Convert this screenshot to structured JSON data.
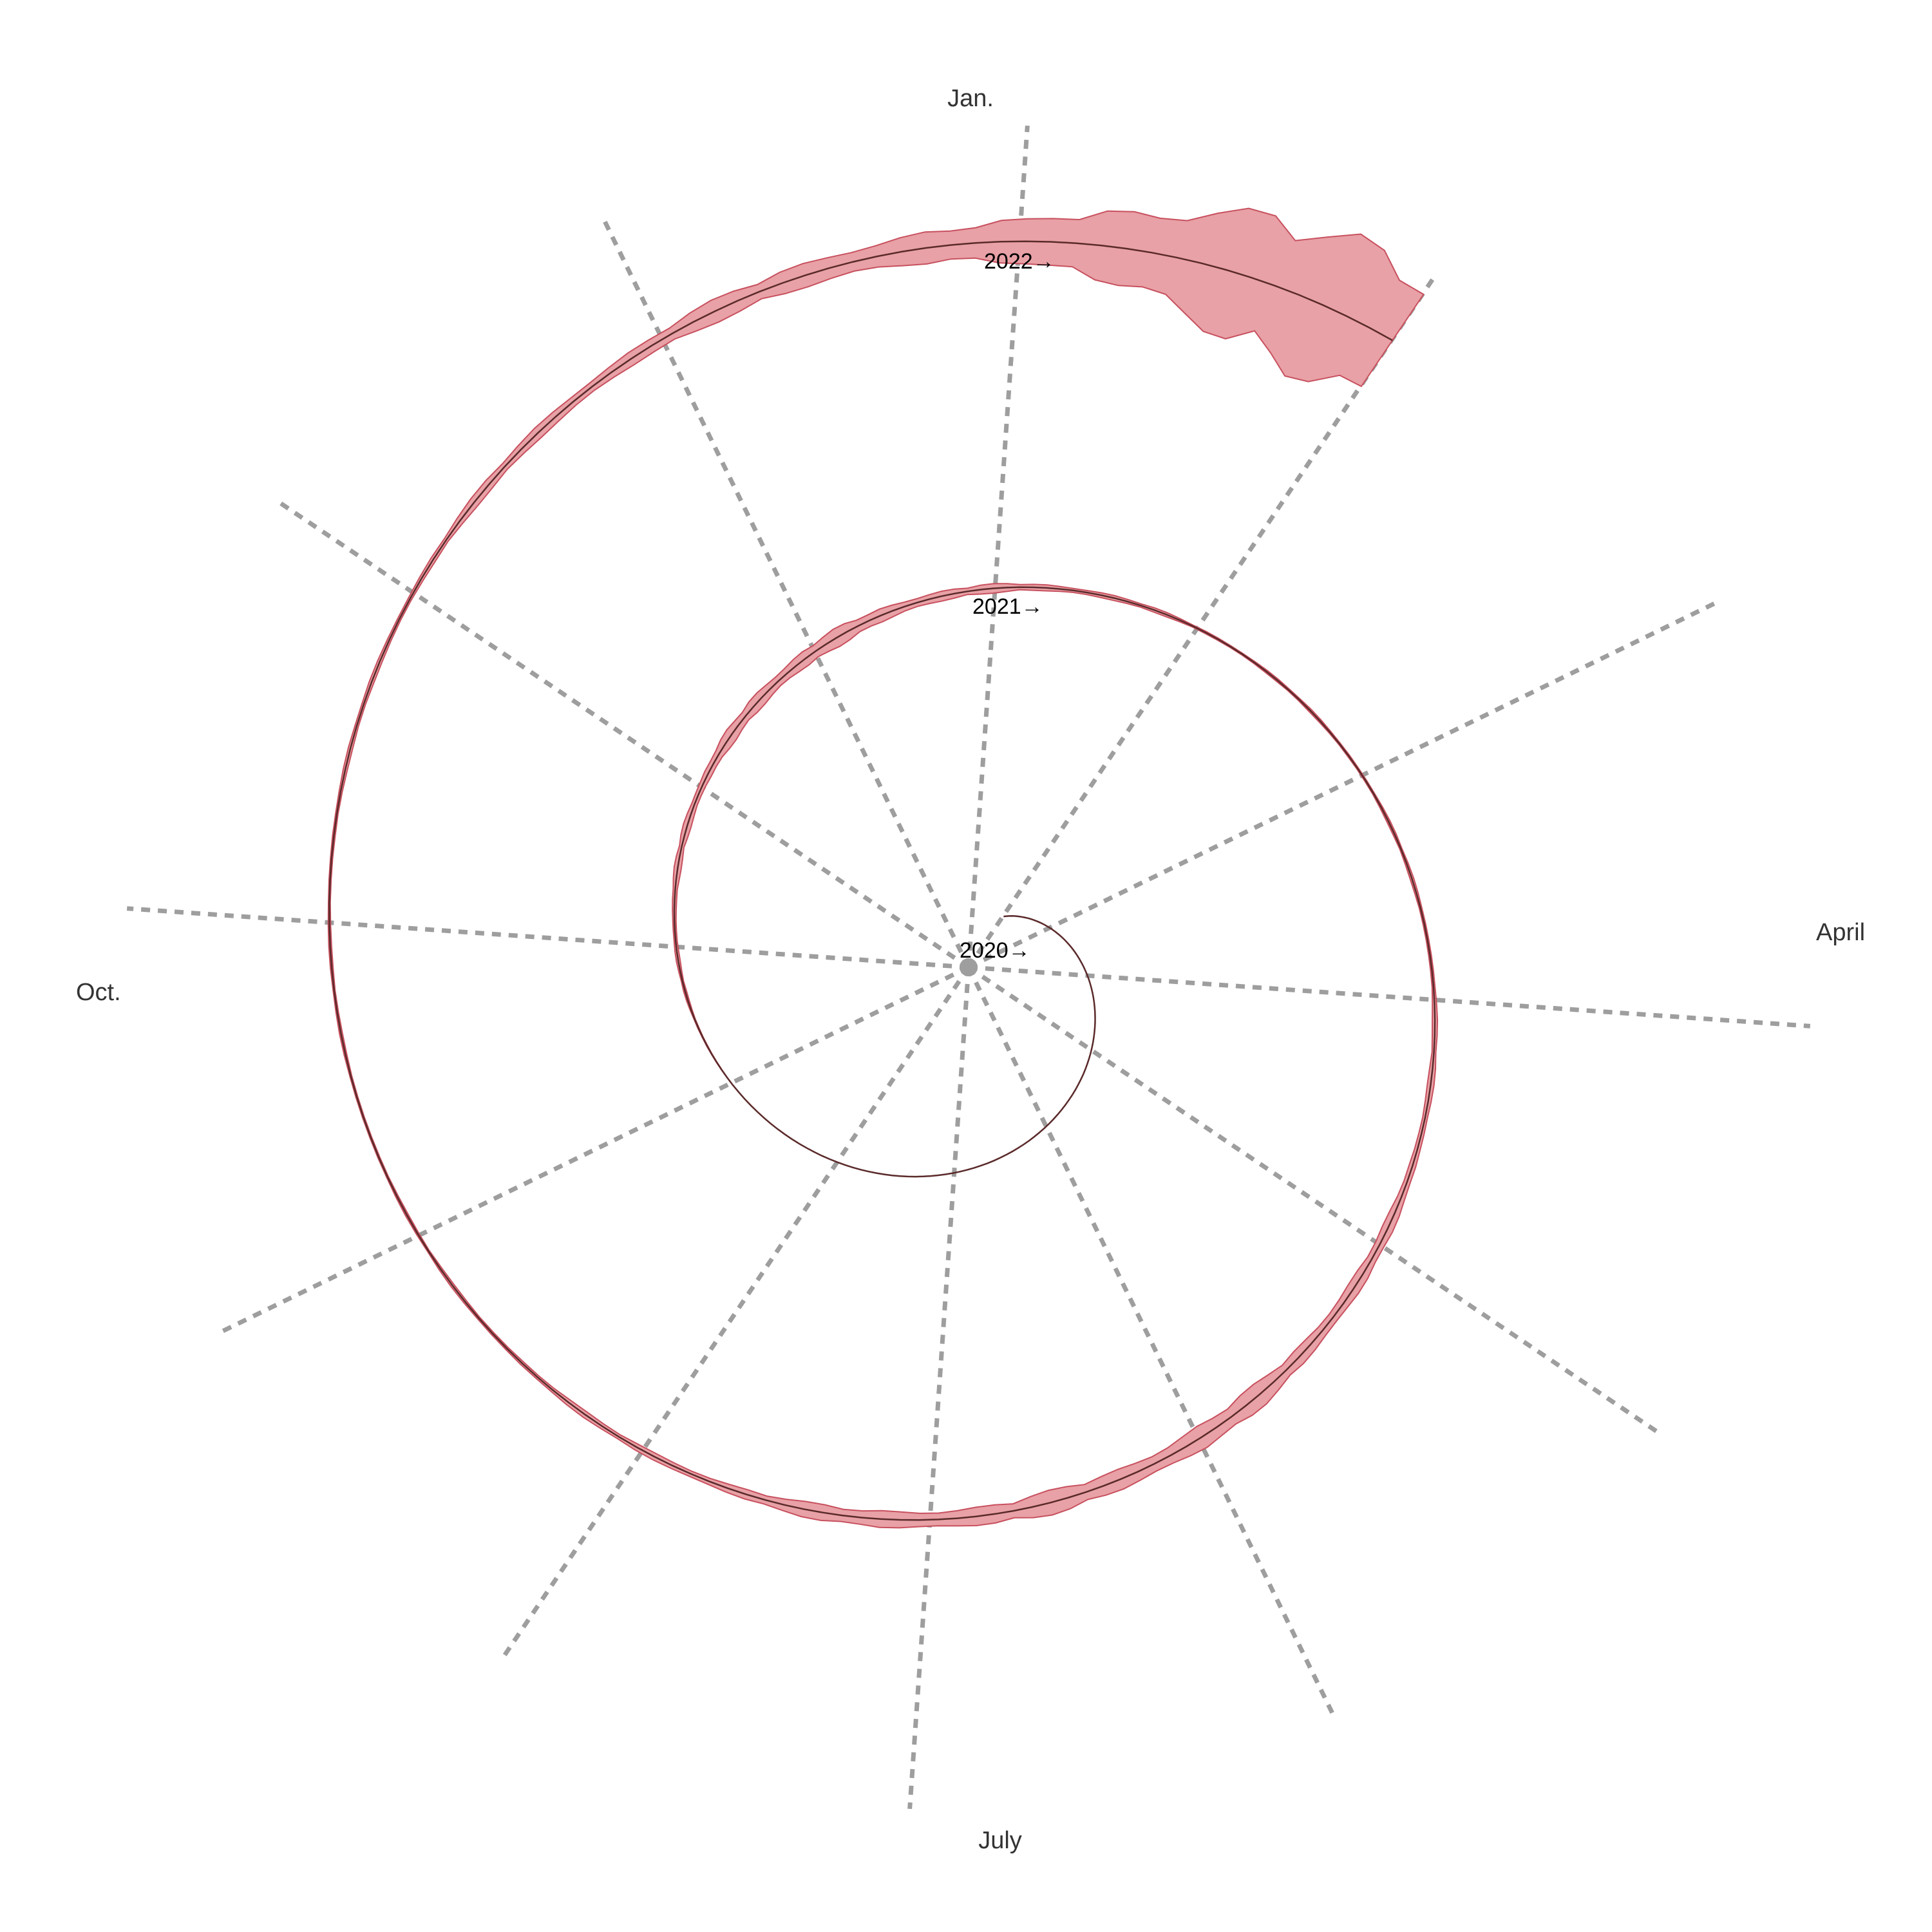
{
  "chart_data": {
    "type": "area",
    "month_labels": [
      "Jan.",
      "April",
      "July",
      "Oct."
    ],
    "year_labels": [
      "2020→",
      "2021→",
      "2022→"
    ],
    "x_unit": "date",
    "x": [
      "2020-02-01",
      "2020-03-01",
      "2020-04-01",
      "2020-05-01",
      "2020-06-01",
      "2020-07-01",
      "2020-08-01",
      "2020-09-01",
      "2020-10-01",
      "2020-11-01",
      "2020-12-01",
      "2021-01-01",
      "2021-02-01",
      "2021-03-01",
      "2021-04-01",
      "2021-05-01",
      "2021-06-01",
      "2021-07-01",
      "2021-08-01",
      "2021-09-01",
      "2021-10-01",
      "2021-11-01",
      "2021-12-01",
      "2022-01-01",
      "2022-01-15",
      "2022-01-31"
    ],
    "series": [
      {
        "values": [
          1,
          3,
          7,
          10,
          15,
          21,
          28,
          34,
          40,
          48,
          55,
          61,
          66,
          71,
          76,
          82,
          88,
          94,
          100,
          107,
          113,
          119,
          125,
          130,
          133,
          135
        ],
        "spread": [
          0,
          0,
          0,
          0,
          0,
          0,
          0,
          0,
          0.3,
          0.7,
          1.3,
          0.6,
          0.2,
          0.2,
          0.3,
          0.8,
          1.8,
          1.5,
          0.5,
          0.2,
          0.2,
          0.4,
          1.2,
          3,
          10,
          11
        ]
      }
    ],
    "colors": {
      "line": "#5a2a2a",
      "band": "#e8a1a6",
      "band_edge": "#c7505e",
      "grid": "#9e9e9e"
    },
    "grid": true,
    "legend": "none"
  }
}
